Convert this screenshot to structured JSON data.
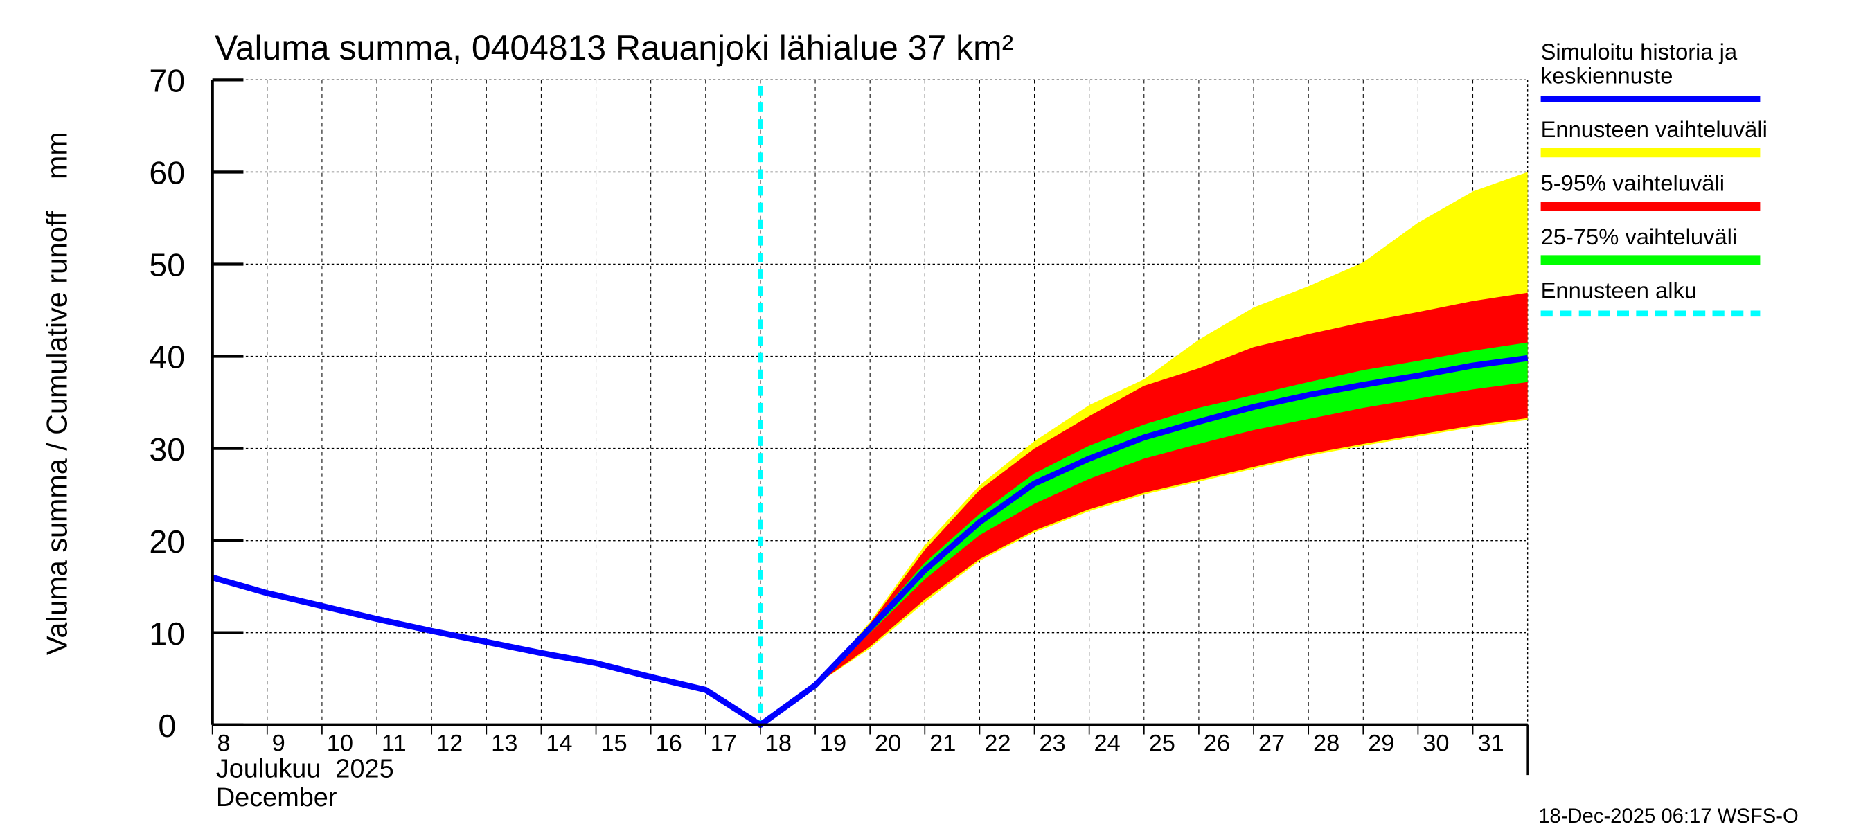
{
  "chart_data": {
    "type": "area",
    "title": "Valuma summa, 0404813 Rauanjoki lähialue 37 km²",
    "ylabel": "Valuma summa / Cumulative runoff    mm",
    "xlabel_line1": "Joulukuu  2025",
    "xlabel_line2": "December",
    "ylim": [
      0,
      70
    ],
    "xlim": [
      8,
      32
    ],
    "yticks": [
      "0",
      "10",
      "20",
      "30",
      "40",
      "50",
      "60",
      "70"
    ],
    "xtick_labels": [
      "8",
      "9",
      "10",
      "11",
      "12",
      "13",
      "14",
      "15",
      "16",
      "17",
      "18",
      "19",
      "20",
      "21",
      "22",
      "23",
      "24",
      "25",
      "26",
      "27",
      "28",
      "29",
      "30",
      "31"
    ],
    "grid": true,
    "forecast_start_day": 18,
    "x": [
      8,
      9,
      10,
      11,
      12,
      13,
      14,
      15,
      16,
      17,
      18,
      19,
      20,
      21,
      22,
      23,
      24,
      25,
      26,
      27,
      28,
      29,
      30,
      31,
      32
    ],
    "series": [
      {
        "name": "Simuloitu historia ja keskiennuste",
        "color": "#0000ff",
        "values": [
          16,
          14.3,
          12.9,
          11.5,
          10.2,
          9.0,
          7.8,
          6.7,
          5.2,
          3.8,
          0,
          4.3,
          10.5,
          16.8,
          22.0,
          26.2,
          28.9,
          31.2,
          32.9,
          34.5,
          35.8,
          36.9,
          37.9,
          39.0,
          39.8
        ]
      }
    ],
    "bands": [
      {
        "name": "Ennusteen vaihteluväli",
        "color": "#ffff00",
        "x": [
          19,
          20,
          21,
          22,
          23,
          24,
          25,
          26,
          27,
          28,
          29,
          30,
          31,
          32
        ],
        "upper": [
          4.3,
          11.2,
          19.5,
          26.0,
          30.8,
          34.7,
          37.5,
          41.8,
          45.3,
          47.6,
          50.2,
          54.5,
          57.9,
          60.0
        ],
        "lower": [
          4.3,
          8.3,
          13.3,
          17.8,
          20.9,
          23.2,
          25.0,
          26.4,
          27.8,
          29.2,
          30.3,
          31.3,
          32.3,
          33.1
        ]
      },
      {
        "name": "5-95% vaihteluväli",
        "color": "#ff0000",
        "x": [
          19,
          20,
          21,
          22,
          23,
          24,
          25,
          26,
          27,
          28,
          29,
          30,
          31,
          32
        ],
        "upper": [
          4.3,
          11.0,
          19.0,
          25.5,
          30.0,
          33.5,
          36.8,
          38.7,
          41.0,
          42.4,
          43.7,
          44.8,
          46.0,
          46.9
        ],
        "lower": [
          4.3,
          8.5,
          13.6,
          18.0,
          21.1,
          23.4,
          25.2,
          26.6,
          28.0,
          29.4,
          30.5,
          31.5,
          32.5,
          33.3
        ]
      },
      {
        "name": "25-75% vaihteluväli",
        "color": "#00ff00",
        "x": [
          19,
          20,
          21,
          22,
          23,
          24,
          25,
          26,
          27,
          28,
          29,
          30,
          31,
          32
        ],
        "upper": [
          4.3,
          10.8,
          17.6,
          22.9,
          27.3,
          30.3,
          32.6,
          34.4,
          35.8,
          37.2,
          38.5,
          39.5,
          40.6,
          41.5
        ],
        "lower": [
          4.3,
          10.0,
          15.8,
          20.6,
          24.0,
          26.7,
          28.9,
          30.5,
          32.0,
          33.2,
          34.4,
          35.4,
          36.4,
          37.2
        ]
      }
    ],
    "legend": {
      "placement": "right",
      "items": [
        {
          "label_lines": [
            "Simuloitu historia ja",
            "keskiennuste"
          ],
          "color": "#0000ff",
          "style": "line"
        },
        {
          "label_lines": [
            "Ennusteen vaihteluväli"
          ],
          "color": "#ffff00",
          "style": "band"
        },
        {
          "label_lines": [
            "5-95% vaihteluväli"
          ],
          "color": "#ff0000",
          "style": "band"
        },
        {
          "label_lines": [
            "25-75% vaihteluväli"
          ],
          "color": "#00ff00",
          "style": "band"
        },
        {
          "label_lines": [
            "Ennusteen alku"
          ],
          "color": "#00ffff",
          "style": "dashed"
        }
      ]
    },
    "footer": "18-Dec-2025 06:17 WSFS-O"
  }
}
